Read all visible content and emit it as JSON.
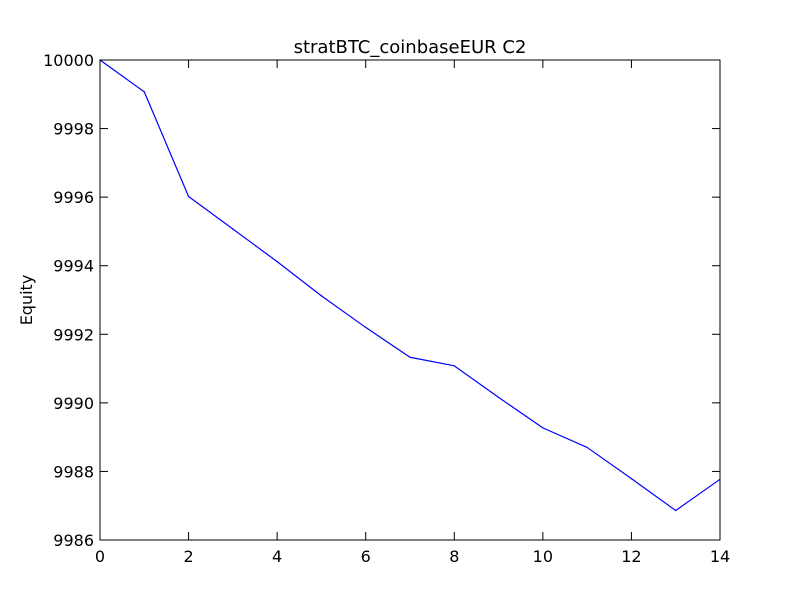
{
  "chart_data": {
    "type": "line",
    "title": "stratBTC_coinbaseEUR C2",
    "xlabel": "",
    "ylabel": "Equity",
    "xlim": [
      0,
      14
    ],
    "ylim": [
      9986,
      10000
    ],
    "x_ticks": [
      0,
      2,
      4,
      6,
      8,
      10,
      12,
      14
    ],
    "y_ticks": [
      9986,
      9988,
      9990,
      9992,
      9994,
      9996,
      9998,
      10000
    ],
    "grid": false,
    "series": [
      {
        "color": "#0000ff",
        "x": [
          0,
          1,
          2,
          3,
          4,
          5,
          6,
          7,
          8,
          9,
          10,
          11,
          12,
          13,
          14
        ],
        "values": [
          10000.0,
          9999.07,
          9996.02,
          9995.07,
          9994.12,
          9993.12,
          9992.2,
          9991.33,
          9991.08,
          9990.16,
          9989.27,
          9988.7,
          9987.79,
          9986.86,
          9987.77
        ]
      }
    ]
  }
}
